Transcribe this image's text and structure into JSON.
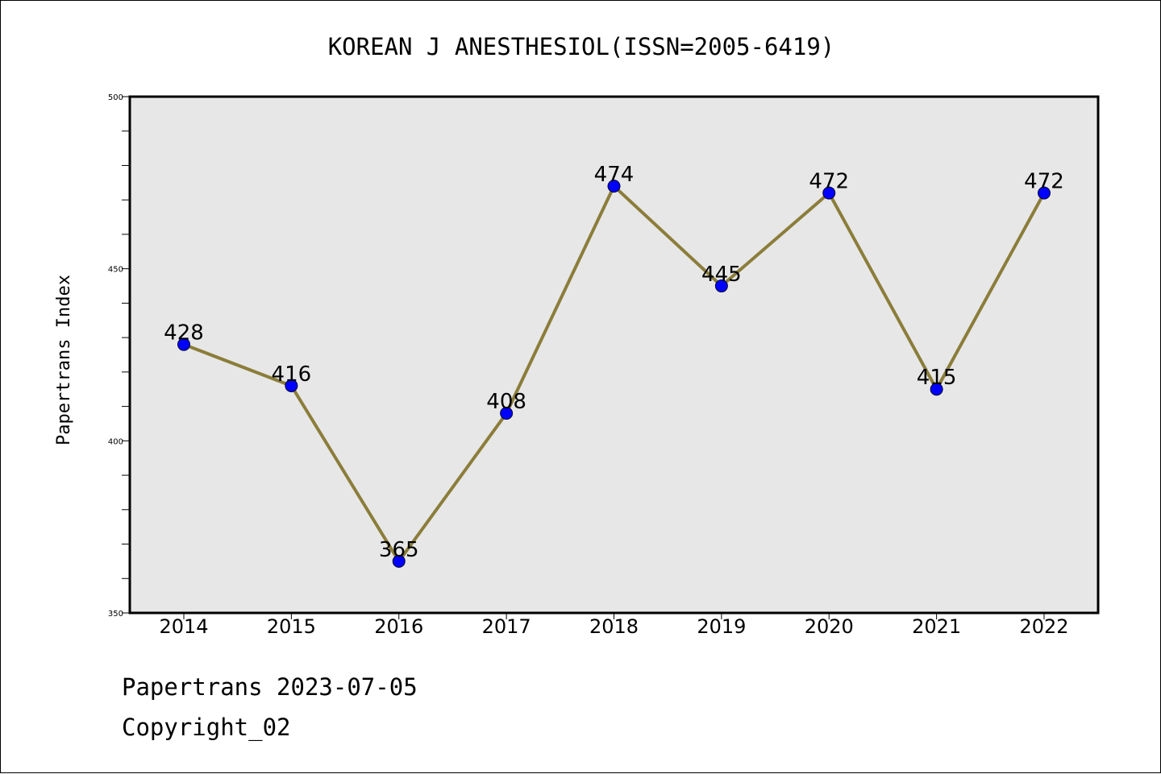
{
  "chart_data": {
    "type": "line",
    "title": "KOREAN J ANESTHESIOL(ISSN=2005-6419)",
    "ylabel": "Papertrans Index",
    "xlabel": "",
    "categories": [
      "2014",
      "2015",
      "2016",
      "2017",
      "2018",
      "2019",
      "2020",
      "2021",
      "2022"
    ],
    "values": [
      428,
      416,
      365,
      408,
      474,
      445,
      472,
      415,
      472
    ],
    "ylim": [
      350,
      500
    ],
    "yticks": [
      "350",
      "400",
      "450",
      "500"
    ],
    "grid": false,
    "legend": "none",
    "colors": {
      "line": "#8b7d3a",
      "marker": "#0000ff",
      "plot_bg": "#e7e7e7"
    }
  },
  "footer": {
    "date_line": "Papertrans 2023-07-05",
    "copyright": "Copyright_02"
  }
}
